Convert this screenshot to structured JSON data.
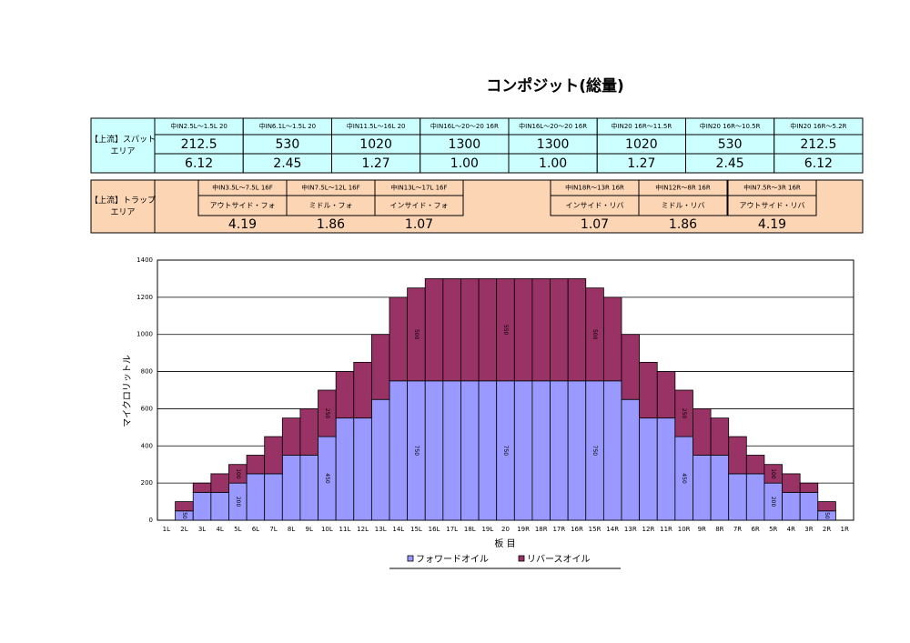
{
  "title": "コンポジット(総量)",
  "spot_table": {
    "label": "【上流】スパット エリア",
    "headers": [
      "中IN2.5L～1.5L 20",
      "中IN6.1L～1.5L 20",
      "中IN11.5L～16L 20",
      "中IN16L～20～20 16R",
      "中IN16L～20～20 16R",
      "中IN20 16R～11.5R",
      "中IN20 16R～10.5R",
      "中IN20 16R～5.2R"
    ],
    "rows": [
      [
        "212.5",
        "530",
        "1020",
        "1300",
        "1300",
        "1020",
        "530",
        "212.5"
      ],
      [
        "6.12",
        "2.45",
        "1.27",
        "1.00",
        "1.00",
        "1.27",
        "2.45",
        "6.12"
      ]
    ]
  },
  "trap_table": {
    "label": "【上流】トラップ エリア",
    "headers": [
      "中IN3.5L～7.5L 16F",
      "中IN7.5L～12L 16F",
      "中IN13L～17L 16F",
      "中IN18R～13R 16R",
      "中IN12R～8R 16R",
      "中IN7.5R～3R 16R"
    ],
    "subheaders": [
      "アウトサイド・フォ",
      "ミドル・フォ",
      "インサイド・フォ",
      "インサイド・リバ",
      "ミドル・リバ",
      "アウトサイド・リバ"
    ],
    "values": [
      "4.19",
      "1.86",
      "1.07",
      "1.07",
      "1.86",
      "4.19"
    ]
  },
  "chart_data": {
    "type": "stacked_bar",
    "xlabel": "板 目",
    "ylabel": "マイクロリットル",
    "categories": [
      "1L",
      "2L",
      "3L",
      "4L",
      "5L",
      "6L",
      "7L",
      "8L",
      "9L",
      "10L",
      "11L",
      "12L",
      "13L",
      "14L",
      "15L",
      "16L",
      "17L",
      "18L",
      "19L",
      "20",
      "19R",
      "18R",
      "17R",
      "16R",
      "15R",
      "14R",
      "13R",
      "12R",
      "11R",
      "10R",
      "9R",
      "8R",
      "7R",
      "6R",
      "5R",
      "4R",
      "3R",
      "2R",
      "1R"
    ],
    "series": [
      {
        "name": "フォワードオイル",
        "color": "#9999ff",
        "values": [
          0,
          50,
          150,
          150,
          200,
          250,
          250,
          350,
          350,
          450,
          550,
          550,
          650,
          750,
          750,
          750,
          750,
          750,
          750,
          750,
          750,
          750,
          750,
          750,
          750,
          750,
          650,
          550,
          550,
          450,
          350,
          350,
          250,
          250,
          200,
          150,
          150,
          50,
          0
        ],
        "value_labels": [
          null,
          "50",
          null,
          null,
          "200",
          null,
          null,
          null,
          null,
          "450",
          null,
          null,
          null,
          null,
          "750",
          null,
          null,
          null,
          null,
          "750",
          null,
          null,
          null,
          null,
          "750",
          null,
          null,
          null,
          null,
          "450",
          null,
          null,
          null,
          null,
          "200",
          null,
          null,
          "50",
          null
        ]
      },
      {
        "name": "リバースオイル",
        "color": "#993366",
        "values": [
          0,
          50,
          50,
          100,
          100,
          100,
          200,
          200,
          250,
          250,
          250,
          300,
          350,
          450,
          500,
          550,
          550,
          550,
          550,
          550,
          550,
          550,
          550,
          550,
          500,
          450,
          350,
          300,
          250,
          250,
          250,
          200,
          200,
          100,
          100,
          100,
          50,
          50,
          0
        ],
        "value_labels": [
          null,
          null,
          null,
          null,
          "100",
          null,
          null,
          null,
          null,
          "250",
          null,
          null,
          null,
          null,
          "500",
          null,
          null,
          null,
          null,
          "550",
          null,
          null,
          null,
          null,
          "500",
          null,
          null,
          null,
          null,
          "250",
          null,
          null,
          null,
          null,
          "100",
          null,
          null,
          null,
          null
        ]
      }
    ],
    "ylim": [
      0,
      1400
    ],
    "yticks": [
      0,
      200,
      400,
      600,
      800,
      1000,
      1200,
      1400
    ],
    "grid": true
  }
}
